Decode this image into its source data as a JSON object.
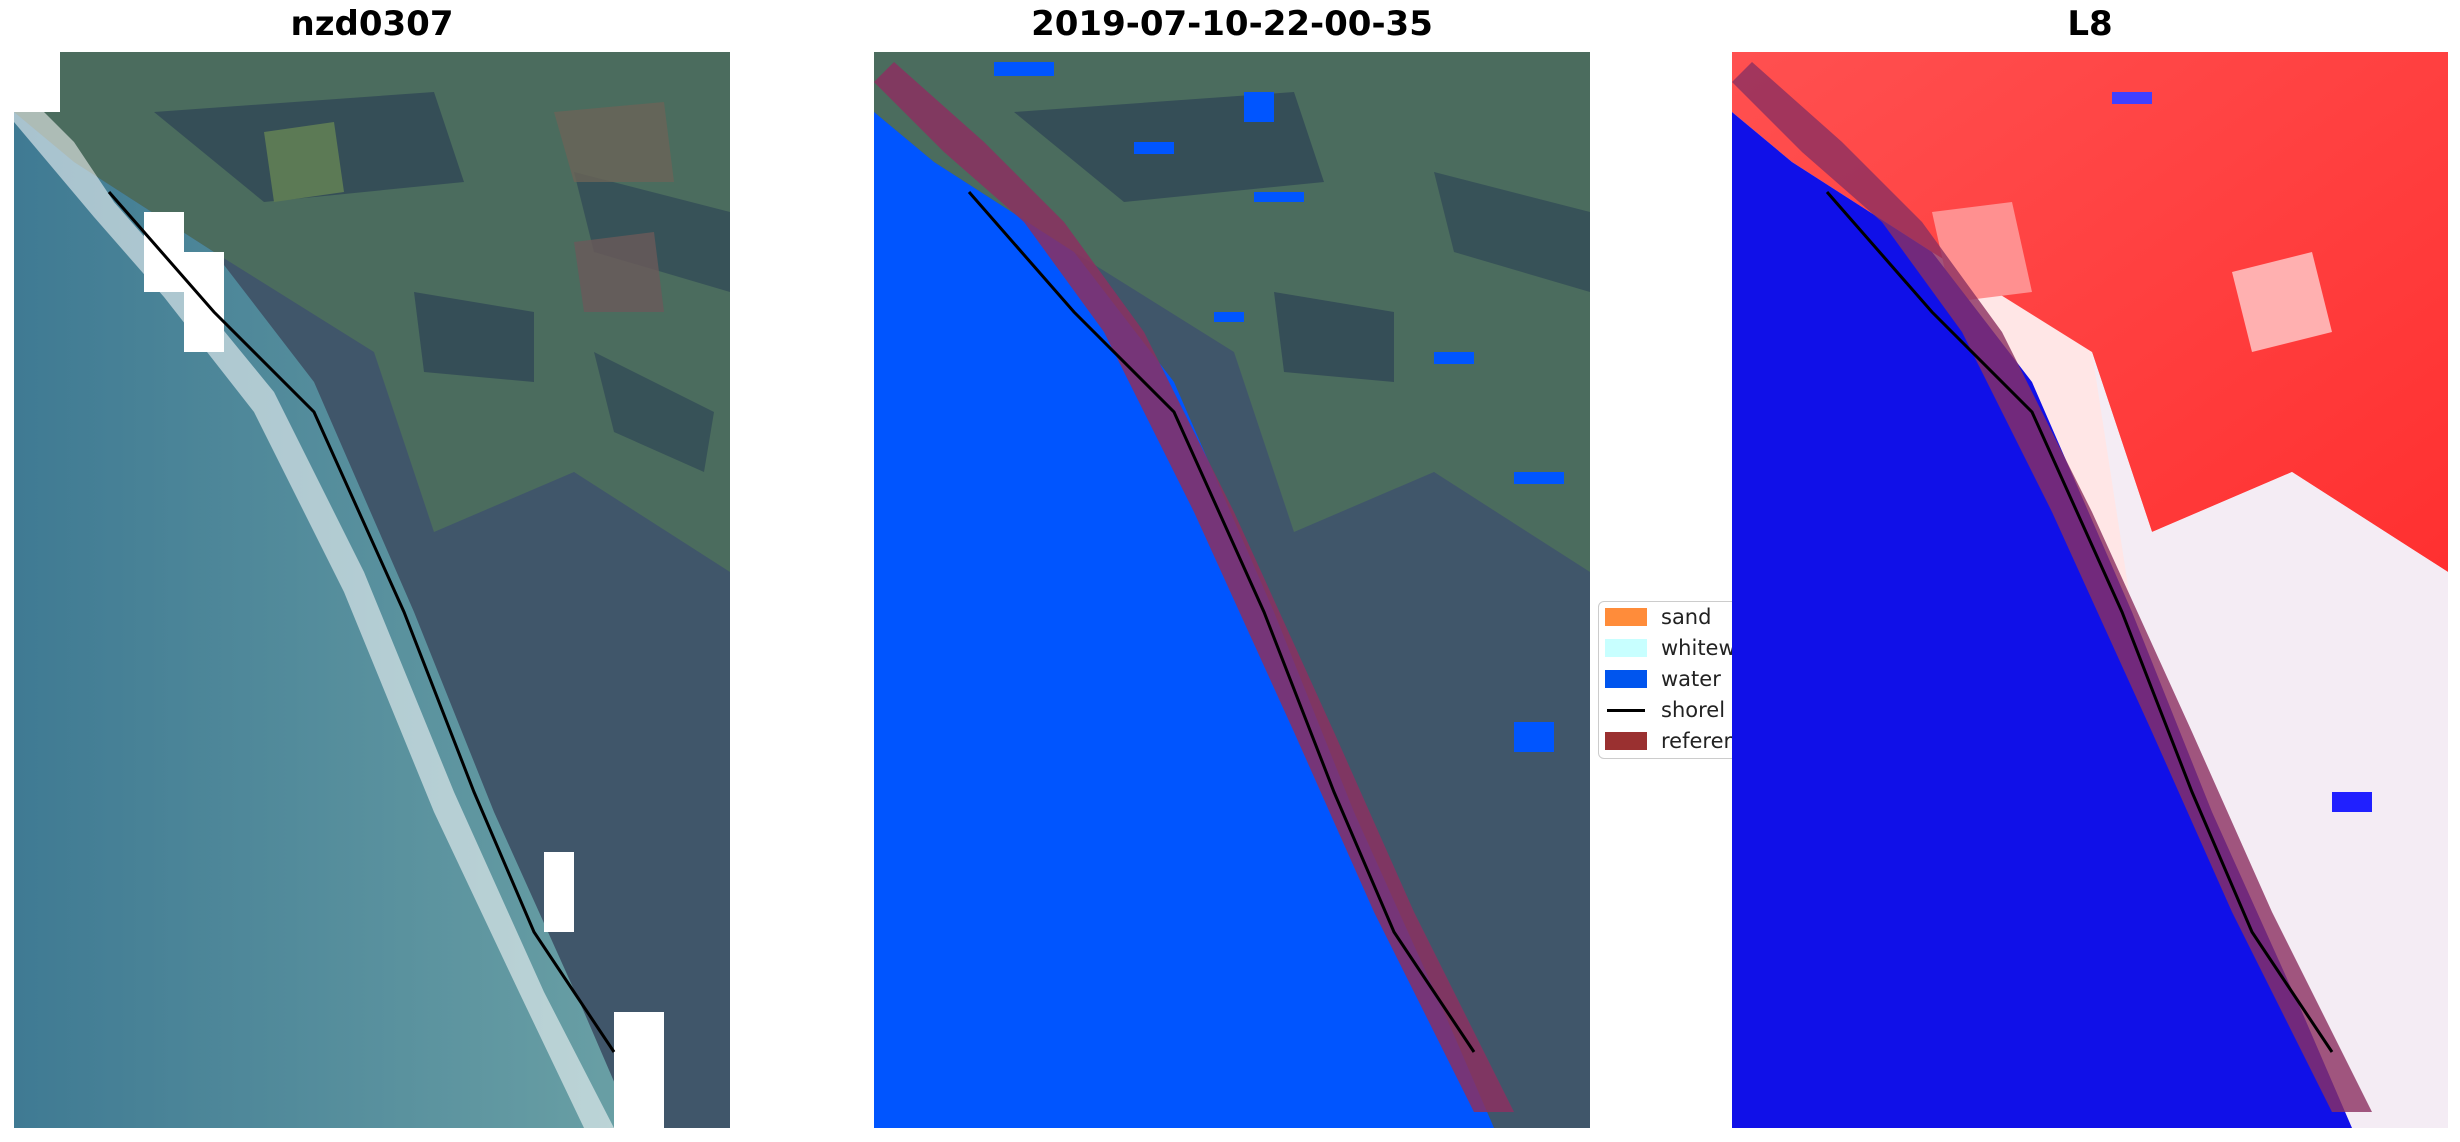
{
  "panels": [
    {
      "title": "nzd0307"
    },
    {
      "title": "2019-07-10-22-00-35"
    },
    {
      "title": "L8"
    }
  ],
  "legend": {
    "items": [
      {
        "label": "sand",
        "color": "#ff8c3a",
        "kind": "patch"
      },
      {
        "label": "whitew",
        "color": "#c8ffff",
        "kind": "patch"
      },
      {
        "label": "water",
        "color": "#0055ee",
        "kind": "patch"
      },
      {
        "label": "shorel",
        "color": "#000000",
        "kind": "line"
      },
      {
        "label": "referen",
        "color": "#9a3030",
        "kind": "patch"
      }
    ]
  },
  "colors": {
    "ocean": "#4a7f95",
    "land": "#4a6a62",
    "forest": "#3f5566",
    "water_class": "#0055ff",
    "reference_buffer": "#8b3060",
    "index_water": "#1010e8",
    "index_land": "#ff4040"
  }
}
